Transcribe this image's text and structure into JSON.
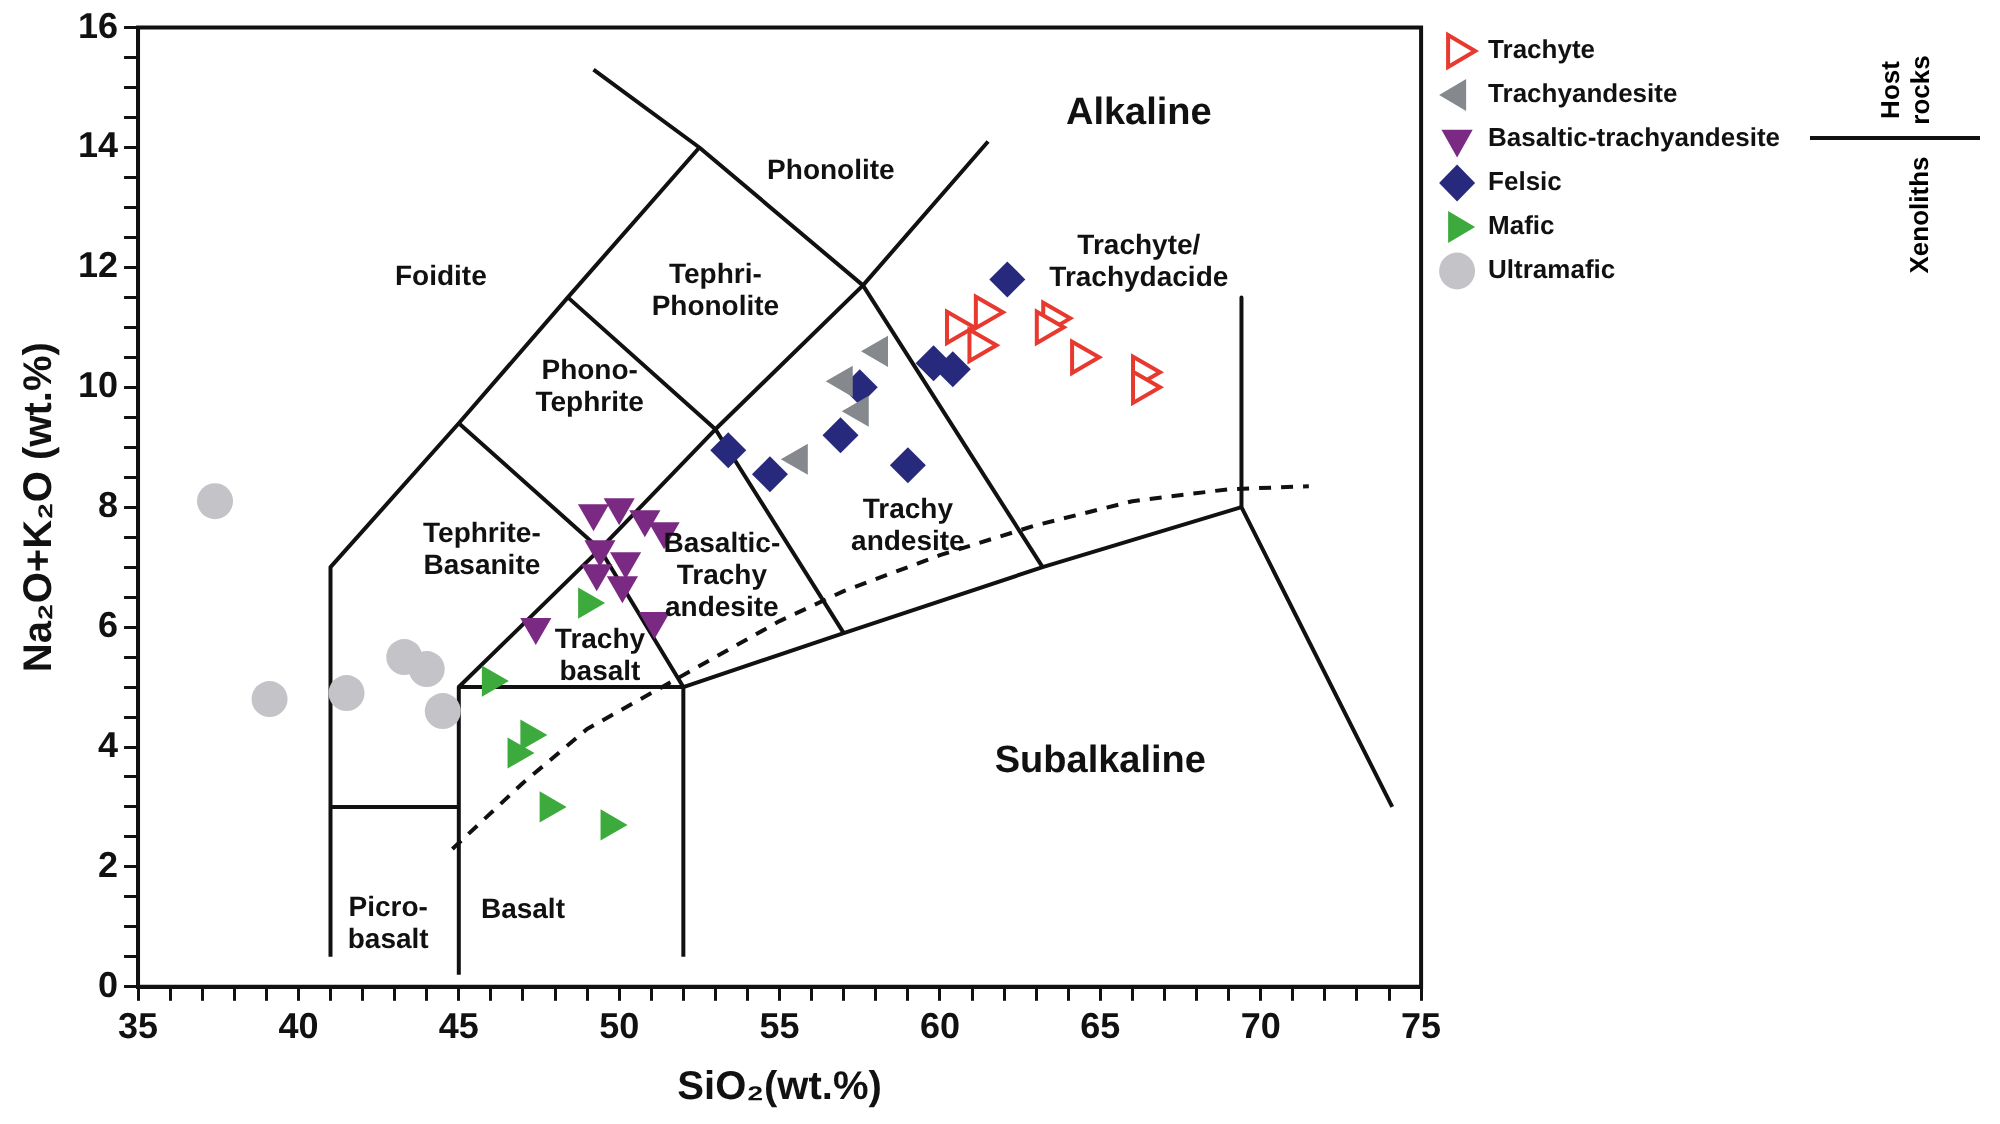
{
  "chart_data": {
    "type": "scatter",
    "xlabel": "SiO₂(wt.%)",
    "ylabel": "Na₂O+K₂O (wt.%)",
    "xlim": [
      35,
      75
    ],
    "ylim": [
      0,
      16
    ],
    "xticks": [
      35,
      {
        "value": 36,
        "label": null
      },
      {
        "value": 37,
        "label": null
      },
      {
        "value": 38,
        "label": null
      },
      {
        "value": 39,
        "label": null
      },
      40,
      {
        "value": 41,
        "label": null
      },
      {
        "value": 42,
        "label": null
      },
      {
        "value": 43,
        "label": null
      },
      {
        "value": 44,
        "label": null
      },
      45,
      {
        "value": 46,
        "label": null
      },
      {
        "value": 47,
        "label": null
      },
      {
        "value": 48,
        "label": null
      },
      {
        "value": 49,
        "label": null
      },
      50,
      {
        "value": 51,
        "label": null
      },
      {
        "value": 52,
        "label": null
      },
      {
        "value": 53,
        "label": null
      },
      {
        "value": 54,
        "label": null
      },
      55,
      {
        "value": 56,
        "label": null
      },
      {
        "value": 57,
        "label": null
      },
      {
        "value": 58,
        "label": null
      },
      {
        "value": 59,
        "label": null
      },
      60,
      {
        "value": 61,
        "label": null
      },
      {
        "value": 62,
        "label": null
      },
      {
        "value": 63,
        "label": null
      },
      {
        "value": 64,
        "label": null
      },
      65,
      {
        "value": 66,
        "label": null
      },
      {
        "value": 67,
        "label": null
      },
      {
        "value": 68,
        "label": null
      },
      {
        "value": 69,
        "label": null
      },
      70,
      {
        "value": 71,
        "label": null
      },
      {
        "value": 72,
        "label": null
      },
      {
        "value": 73,
        "label": null
      },
      {
        "value": 74,
        "label": null
      },
      75
    ],
    "yticks": [
      0,
      {
        "value": 0.5,
        "label": null
      },
      {
        "value": 1,
        "label": null
      },
      {
        "value": 1.5,
        "label": null
      },
      2,
      {
        "value": 2.5,
        "label": null
      },
      {
        "value": 3,
        "label": null
      },
      {
        "value": 3.5,
        "label": null
      },
      4,
      {
        "value": 4.5,
        "label": null
      },
      {
        "value": 5,
        "label": null
      },
      {
        "value": 5.5,
        "label": null
      },
      6,
      {
        "value": 6.5,
        "label": null
      },
      {
        "value": 7,
        "label": null
      },
      {
        "value": 7.5,
        "label": null
      },
      8,
      {
        "value": 8.5,
        "label": null
      },
      {
        "value": 9,
        "label": null
      },
      {
        "value": 9.5,
        "label": null
      },
      10,
      {
        "value": 10.5,
        "label": null
      },
      {
        "value": 11,
        "label": null
      },
      {
        "value": 11.5,
        "label": null
      },
      12,
      {
        "value": 12.5,
        "label": null
      },
      {
        "value": 13,
        "label": null
      },
      {
        "value": 13.5,
        "label": null
      },
      14,
      {
        "value": 14.5,
        "label": null
      },
      {
        "value": 15,
        "label": null
      },
      {
        "value": 15.5,
        "label": null
      },
      16
    ],
    "grid": false,
    "legend": "top right",
    "series": [
      {
        "name": "Trachyte",
        "color": "#e8392f",
        "marker": "triangle-right-open",
        "x": [
          60.5,
          61.4,
          61.2,
          63.5,
          63.3,
          64.4,
          66.3,
          66.3
        ],
        "values": [
          11.0,
          11.25,
          10.7,
          11.15,
          11.0,
          10.5,
          10.25,
          10.0
        ]
      },
      {
        "name": "Trachyandesite",
        "color": "#85898e",
        "marker": "triangle-left",
        "x": [
          55.6,
          57.0,
          57.5,
          58.1
        ],
        "values": [
          8.8,
          10.1,
          9.6,
          10.6
        ]
      },
      {
        "name": "Basaltic-trachyandesite",
        "color": "#7b2a83",
        "marker": "triangle-down",
        "x": [
          49.2,
          50.0,
          50.8,
          51.4,
          49.4,
          50.2,
          49.3,
          50.1,
          51.1,
          47.4
        ],
        "values": [
          7.9,
          8.0,
          7.8,
          7.6,
          7.3,
          7.1,
          6.9,
          6.7,
          6.1,
          6.0
        ]
      },
      {
        "name": "Felsic",
        "color": "#272a7c",
        "marker": "diamond",
        "x": [
          62.1,
          59.8,
          60.4,
          57.5,
          56.9,
          59.0,
          53.4,
          54.7
        ],
        "values": [
          11.8,
          10.4,
          10.3,
          10.0,
          9.2,
          8.7,
          8.95,
          8.55
        ]
      },
      {
        "name": "Mafic",
        "color": "#3daa3d",
        "marker": "triangle-right",
        "x": [
          46.0,
          49.0,
          47.2,
          46.8,
          47.8,
          49.7
        ],
        "values": [
          5.1,
          6.4,
          4.2,
          3.9,
          3.0,
          2.7
        ]
      },
      {
        "name": "Ultramafic",
        "color": "#c4c4c8",
        "marker": "circle",
        "x": [
          37.4,
          39.1,
          41.5,
          43.3,
          44.0,
          44.5
        ],
        "values": [
          8.1,
          4.8,
          4.9,
          5.5,
          5.3,
          4.6
        ]
      },
      {
        "type": "line",
        "color": "#111111",
        "x": [
          41,
          41,
          45,
          48.4,
          52.5
        ],
        "values": [
          0.5,
          7,
          9.4,
          11.5,
          14
        ]
      },
      {
        "type": "line",
        "color": "#111111",
        "x": [
          49.2,
          52.5,
          57.6,
          63.2
        ],
        "values": [
          15.3,
          14,
          11.7,
          7.0
        ]
      },
      {
        "type": "line",
        "color": "#111111",
        "x": [
          69.4,
          69.4,
          74.1
        ],
        "values": [
          11.5,
          8.0,
          3.0
        ]
      },
      {
        "type": "line",
        "color": "#111111",
        "x": [
          45,
          45,
          52,
          57,
          63.2,
          69.4
        ],
        "values": [
          0.2,
          5,
          5,
          5.9,
          7.0,
          8.0
        ]
      },
      {
        "type": "line",
        "color": "#111111",
        "x": [
          52,
          52
        ],
        "values": [
          0.5,
          5
        ]
      },
      {
        "type": "line",
        "color": "#111111",
        "x": [
          41,
          45
        ],
        "values": [
          3,
          3
        ]
      },
      {
        "type": "line",
        "color": "#111111",
        "x": [
          45,
          49.4,
          52
        ],
        "values": [
          9.4,
          7.3,
          5
        ]
      },
      {
        "type": "line",
        "color": "#111111",
        "x": [
          45,
          49.4,
          53,
          57.6,
          61.5
        ],
        "values": [
          5,
          7.3,
          9.3,
          11.7,
          14.1
        ]
      },
      {
        "type": "line",
        "color": "#111111",
        "x": [
          48.4,
          53,
          57
        ],
        "values": [
          11.5,
          9.3,
          5.9
        ]
      },
      {
        "type": "line",
        "color": "#111111",
        "line_style": "dashed",
        "x": [
          44.8,
          47,
          49,
          51,
          53,
          55,
          57,
          60,
          63,
          66,
          69,
          71.5
        ],
        "values": [
          2.3,
          3.4,
          4.3,
          4.9,
          5.5,
          6.1,
          6.6,
          7.2,
          7.7,
          8.1,
          8.3,
          8.35
        ]
      }
    ],
    "annotations": [
      "Alkaline",
      "Phonolite",
      "Foidite",
      "Tephri-\nPhonolite",
      "Phono-\nTephrite",
      "Tephrite-\nBasanite",
      "Trachyte/\nTrachydacide",
      "Trachy\nandesite",
      "Basaltic-\nTrachy\nandesite",
      "Trachy\nbasalt",
      "Picro-\nbasalt",
      "Basalt",
      "Subalkaline",
      "Host rocks",
      "Xenoliths"
    ]
  }
}
